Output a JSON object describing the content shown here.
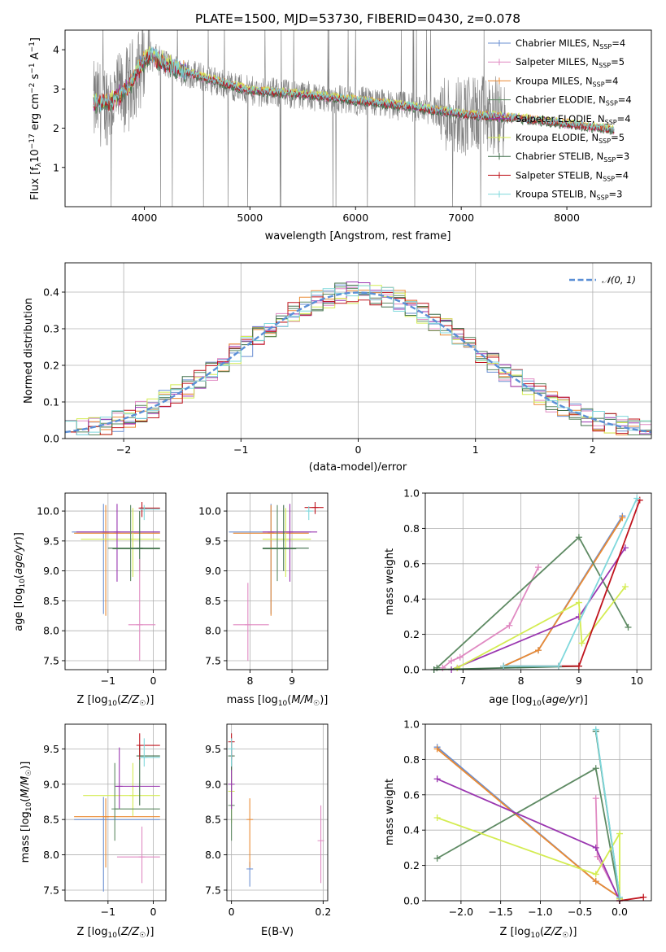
{
  "title": "PLATE=1500, MJD=53730, FIBERID=0430, z=0.078",
  "colors": {
    "Chabrier MILES": "#6a8fd2",
    "Salpeter MILES": "#e08ac2",
    "Kroupa MILES": "#ea8a33",
    "Chabrier ELODIE": "#5e8a63",
    "Salpeter ELODIE": "#9a36b0",
    "Kroupa ELODIE": "#d4ec52",
    "Chabrier STELIB": "#3f6e4a",
    "Salpeter STELIB": "#c0141e",
    "Kroupa STELIB": "#7fd8dc",
    "data": "#808080"
  },
  "legend_spectrum": [
    {
      "model": "Chabrier MILES",
      "prefix": "Chabrier MILES, N",
      "n": "=4"
    },
    {
      "model": "Salpeter MILES",
      "prefix": "Salpeter MILES, N",
      "n": "=5"
    },
    {
      "model": "Kroupa MILES",
      "prefix": "Kroupa MILES, N",
      "n": "=4"
    },
    {
      "model": "Chabrier ELODIE",
      "prefix": "Chabrier ELODIE, N",
      "n": "=4"
    },
    {
      "model": "Salpeter ELODIE",
      "prefix": "Salpeter ELODIE, N",
      "n": "=4"
    },
    {
      "model": "Kroupa ELODIE",
      "prefix": "Kroupa ELODIE, N",
      "n": "=5"
    },
    {
      "model": "Chabrier STELIB",
      "prefix": "Chabrier STELIB, N",
      "n": "=3"
    },
    {
      "model": "Salpeter STELIB",
      "prefix": "Salpeter STELIB, N",
      "n": "=4"
    },
    {
      "model": "Kroupa STELIB",
      "prefix": "Kroupa STELIB, N",
      "n": "=3"
    }
  ],
  "legend_hist": "N(0,1)",
  "chart_data": [
    {
      "id": "spectrum",
      "type": "line",
      "title": "PLATE=1500, MJD=53730, FIBERID=0430, z=0.078",
      "xlabel": "wavelength [Angstrom, rest frame]",
      "ylabel": "Flux [f_λ 10^-17 erg cm^-2 s^-1 A^-1]",
      "xlim": [
        3250,
        8800
      ],
      "ylim": [
        0,
        4.5
      ],
      "xticks": [
        4000,
        5000,
        6000,
        7000,
        8000
      ],
      "yticks": [
        1,
        2,
        3,
        4
      ],
      "continuum": [
        [
          3520,
          2.6
        ],
        [
          3700,
          2.7
        ],
        [
          3850,
          3.0
        ],
        [
          3950,
          3.5
        ],
        [
          4050,
          3.85
        ],
        [
          4300,
          3.5
        ],
        [
          4600,
          3.25
        ],
        [
          5000,
          2.95
        ],
        [
          5500,
          2.85
        ],
        [
          6000,
          2.7
        ],
        [
          6500,
          2.55
        ],
        [
          7000,
          2.35
        ],
        [
          7500,
          2.25
        ],
        [
          8000,
          2.1
        ],
        [
          8450,
          1.95
        ]
      ],
      "data_range": [
        3520,
        7420
      ],
      "model_range": [
        3520,
        8450
      ]
    },
    {
      "id": "residuals",
      "type": "bar",
      "xlabel": "(data-model)/error",
      "ylabel": "Normed distribution",
      "xlim": [
        -2.5,
        2.5
      ],
      "ylim": [
        0,
        0.48
      ],
      "xticks": [
        -2,
        -1,
        0,
        1,
        2
      ],
      "yticks": [
        0.0,
        0.1,
        0.2,
        0.3,
        0.4
      ],
      "gaussian": {
        "mu": 0,
        "sigma": 1,
        "name": "N(0,1)"
      }
    },
    {
      "id": "age_vs_Z",
      "type": "scatter",
      "xlabel": "Z [log10(Z/Z☉)]",
      "ylabel": "age [log10(age/yr)]",
      "xlim": [
        -1.95,
        0.28
      ],
      "ylim": [
        7.35,
        10.3
      ],
      "xticks": [
        -1,
        0
      ],
      "yticks": [
        7.5,
        8.0,
        8.5,
        9.0,
        9.5,
        10.0
      ]
    },
    {
      "id": "age_vs_mass",
      "type": "scatter",
      "xlabel": "mass [log10(M/M☉)]",
      "ylabel": "",
      "xlim": [
        7.45,
        9.85
      ],
      "ylim": [
        7.35,
        10.3
      ],
      "xticks": [
        8,
        9
      ],
      "yticks": [
        7.5,
        8.0,
        8.5,
        9.0,
        9.5,
        10.0
      ]
    },
    {
      "id": "weight_vs_age",
      "type": "line",
      "xlabel": "age [log10(age/yr)]",
      "ylabel": "mass weight",
      "xlim": [
        6.35,
        10.25
      ],
      "ylim": [
        0,
        1.0
      ],
      "xticks": [
        7,
        8,
        9,
        10
      ],
      "yticks": [
        0.0,
        0.2,
        0.4,
        0.6,
        0.8,
        1.0
      ],
      "series": [
        {
          "model": "Chabrier MILES",
          "x": [
            7.7,
            8.3,
            9.75
          ],
          "y": [
            0.02,
            0.11,
            0.87
          ]
        },
        {
          "model": "Salpeter MILES",
          "x": [
            6.65,
            6.8,
            6.95,
            7.8,
            8.3
          ],
          "y": [
            0.01,
            0.05,
            0.07,
            0.25,
            0.58
          ]
        },
        {
          "model": "Kroupa MILES",
          "x": [
            7.7,
            8.3,
            9.75
          ],
          "y": [
            0.02,
            0.11,
            0.86
          ]
        },
        {
          "model": "Chabrier ELODIE",
          "x": [
            6.55,
            9.0,
            9.85
          ],
          "y": [
            0.01,
            0.75,
            0.24
          ]
        },
        {
          "model": "Salpeter ELODIE",
          "x": [
            6.8,
            9.0,
            9.8
          ],
          "y": [
            0.0,
            0.3,
            0.69
          ]
        },
        {
          "model": "Kroupa ELODIE",
          "x": [
            6.9,
            9.0,
            9.05,
            9.8
          ],
          "y": [
            0.01,
            0.38,
            0.15,
            0.47
          ]
        },
        {
          "model": "Chabrier STELIB",
          "x": [
            6.5,
            9.0
          ],
          "y": [
            0.0,
            0.02
          ]
        },
        {
          "model": "Salpeter STELIB",
          "x": [
            7.7,
            8.65,
            9.0,
            10.05
          ],
          "y": [
            0.02,
            0.02,
            0.02,
            0.96
          ]
        },
        {
          "model": "Kroupa STELIB",
          "x": [
            7.7,
            8.65,
            10.0
          ],
          "y": [
            0.02,
            0.02,
            0.97
          ]
        }
      ]
    },
    {
      "id": "mass_vs_Z",
      "type": "scatter",
      "xlabel": "Z [log10(Z/Z☉)]",
      "ylabel": "mass [log10(M/M☉)]",
      "xlim": [
        -1.95,
        0.28
      ],
      "ylim": [
        7.35,
        9.85
      ],
      "xticks": [
        -1,
        0
      ],
      "yticks": [
        7.5,
        8.0,
        8.5,
        9.0,
        9.5
      ]
    },
    {
      "id": "mass_vs_ebv",
      "type": "scatter",
      "xlabel": "E(B-V)",
      "ylabel": "",
      "xlim": [
        -0.01,
        0.21
      ],
      "ylim": [
        7.35,
        9.85
      ],
      "xticks": [
        0.0,
        0.2
      ],
      "yticks": [
        7.5,
        8.0,
        8.5,
        9.0,
        9.5
      ]
    },
    {
      "id": "weight_vs_Z",
      "type": "line",
      "xlabel": "Z [log10(Z/Z☉)]",
      "ylabel": "mass weight",
      "xlim": [
        -2.45,
        0.4
      ],
      "ylim": [
        0,
        1.0
      ],
      "xticks": [
        -2.0,
        -1.5,
        -1.0,
        -0.5,
        0.0
      ],
      "yticks": [
        0.0,
        0.2,
        0.4,
        0.6,
        0.8,
        1.0
      ],
      "series": [
        {
          "model": "Chabrier MILES",
          "x": [
            -2.3,
            -0.3,
            0.0
          ],
          "y": [
            0.87,
            0.11,
            0.02
          ]
        },
        {
          "model": "Salpeter MILES",
          "x": [
            -0.3,
            -0.28,
            0.0
          ],
          "y": [
            0.58,
            0.25,
            0.01
          ]
        },
        {
          "model": "Kroupa MILES",
          "x": [
            -2.3,
            -0.3,
            0.0
          ],
          "y": [
            0.86,
            0.11,
            0.02
          ]
        },
        {
          "model": "Chabrier ELODIE",
          "x": [
            -2.3,
            -0.3,
            0.0
          ],
          "y": [
            0.24,
            0.75,
            0.01
          ]
        },
        {
          "model": "Salpeter ELODIE",
          "x": [
            -2.3,
            -0.3,
            0.0
          ],
          "y": [
            0.69,
            0.3,
            0.0
          ]
        },
        {
          "model": "Kroupa ELODIE",
          "x": [
            -2.3,
            -0.3,
            0.0,
            0.0
          ],
          "y": [
            0.47,
            0.15,
            0.38,
            0.01
          ]
        },
        {
          "model": "Chabrier STELIB",
          "x": [
            -0.3,
            0.0
          ],
          "y": [
            0.96,
            0.02
          ]
        },
        {
          "model": "Salpeter STELIB",
          "x": [
            0.0,
            0.3
          ],
          "y": [
            0.0,
            0.02
          ]
        },
        {
          "model": "Kroupa STELIB",
          "x": [
            -0.3,
            0.0
          ],
          "y": [
            0.97,
            0.02
          ]
        }
      ]
    }
  ]
}
